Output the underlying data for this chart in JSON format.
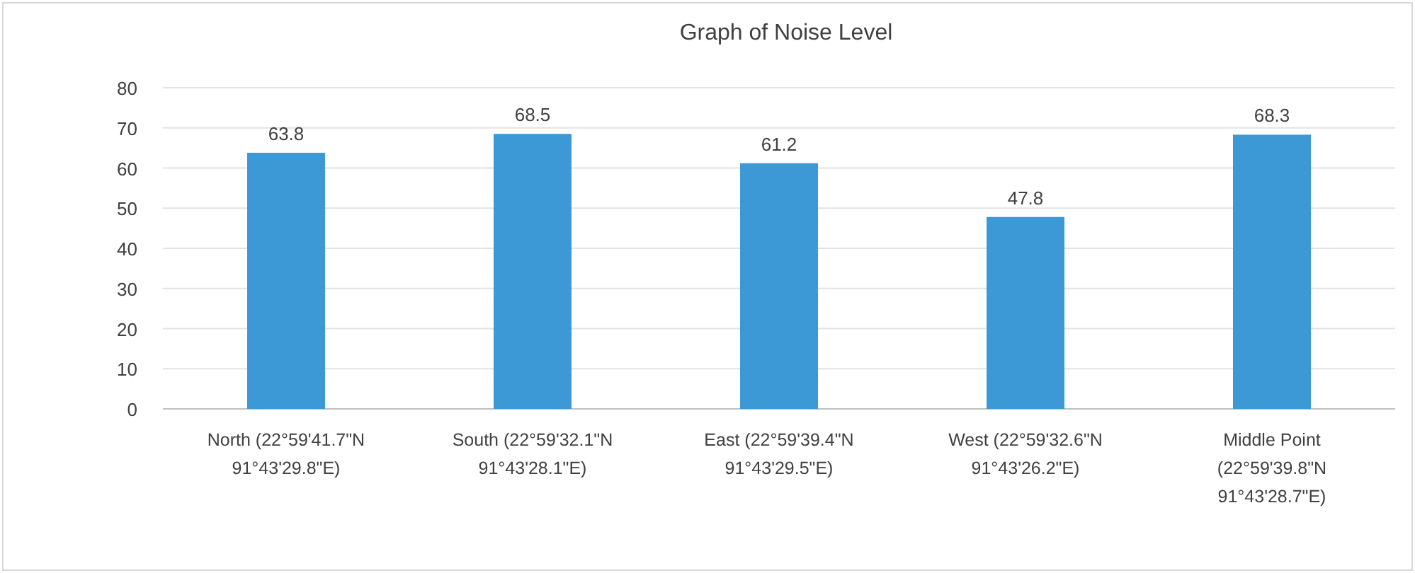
{
  "chart_data": {
    "type": "bar",
    "title": "Graph of Noise Level",
    "categories": [
      "North (22°59'41.7\"N 91°43'29.8\"E)",
      "South (22°59'32.1\"N 91°43'28.1\"E)",
      "East (22°59'39.4\"N 91°43'29.5\"E)",
      "West (22°59'32.6\"N 91°43'26.2\"E)",
      "Middle Point (22°59'39.8\"N 91°43'28.7\"E)"
    ],
    "values": [
      63.8,
      68.5,
      61.2,
      47.8,
      68.3
    ],
    "color": "#3d99d6",
    "ylim": [
      0,
      80
    ],
    "yticks": [
      0,
      10,
      20,
      30,
      40,
      50,
      60,
      70,
      80
    ],
    "grid": "y",
    "data_labels": true
  }
}
